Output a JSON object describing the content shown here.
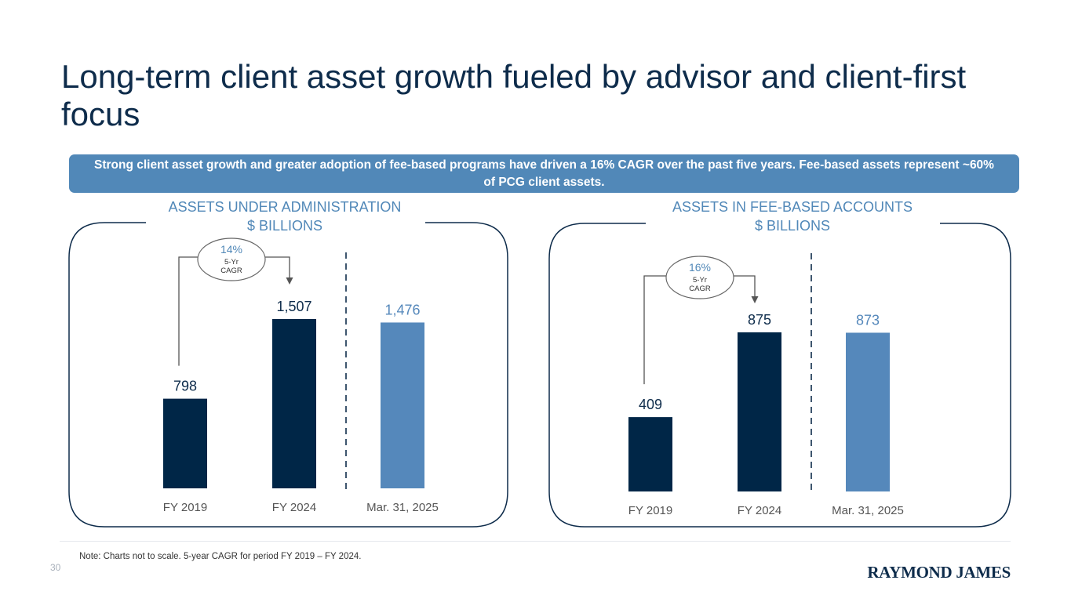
{
  "slide": {
    "title": "Long-term client asset growth fueled by advisor and client-first focus",
    "banner": "Strong client asset growth and greater adoption of fee-based programs have driven a 16% CAGR over the past five years. Fee-based assets represent ~60% of PCG client assets.",
    "note": "Note: Charts not to scale. 5-year CAGR for period FY 2019 – FY 2024.",
    "page_number": "30",
    "logo_text": "RAYMOND JAMES"
  },
  "colors": {
    "dark_navy": "#0e2c4b",
    "bar_dark": "#002647",
    "bar_light": "#5588bb",
    "accent_blue": "#5188b8"
  },
  "chart_data": [
    {
      "type": "bar",
      "title": "ASSETS UNDER ADMINISTRATION",
      "subtitle": "$ BILLIONS",
      "categories": [
        "FY 2019",
        "FY 2024",
        "Mar. 31, 2025"
      ],
      "values": [
        798,
        1507,
        1476
      ],
      "value_labels": [
        "798",
        "1,507",
        "1,476"
      ],
      "cagr": {
        "value": "14%",
        "label_line1": "5-Yr",
        "label_line2": "CAGR",
        "from": "FY 2019",
        "to": "FY 2024"
      },
      "note": "not to scale"
    },
    {
      "type": "bar",
      "title": "ASSETS IN FEE-BASED ACCOUNTS",
      "subtitle": "$ BILLIONS",
      "categories": [
        "FY 2019",
        "FY 2024",
        "Mar. 31, 2025"
      ],
      "values": [
        409,
        875,
        873
      ],
      "value_labels": [
        "409",
        "875",
        "873"
      ],
      "cagr": {
        "value": "16%",
        "label_line1": "5-Yr",
        "label_line2": "CAGR",
        "from": "FY 2019",
        "to": "FY 2024"
      },
      "note": "not to scale"
    }
  ]
}
